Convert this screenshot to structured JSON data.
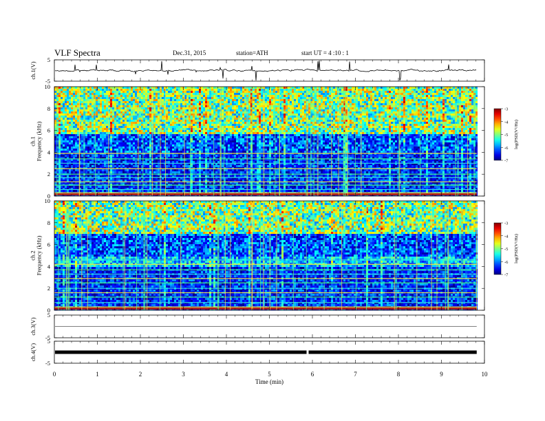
{
  "header": {
    "title": "VLF  Spectra",
    "date": "Dec.31, 2015",
    "station": "station=ATH",
    "start": "start  UT  =   4  :10 : 1"
  },
  "chart_data": [
    {
      "type": "line",
      "name": "ch1-waveform",
      "ylabel": "ch.1(V)",
      "ylim": [
        -5,
        5
      ],
      "yticks": [
        "5",
        "-5"
      ],
      "xlim": [
        0,
        10
      ]
    },
    {
      "type": "heatmap",
      "name": "ch1-spectrogram",
      "ylabel_line1": "ch.1",
      "ylabel_line2": "Frequency  (kHz)",
      "ylim": [
        0,
        10
      ],
      "yticks": [
        "0",
        "2",
        "4",
        "6",
        "8",
        "10"
      ],
      "xlim": [
        0,
        10
      ],
      "colorbar": {
        "label": "log(PSD(V²/Hz)",
        "range": [
          -7,
          -3
        ],
        "ticks": [
          "-3",
          "-4",
          "-5",
          "-6",
          "-7"
        ]
      },
      "features": {
        "green_region_above_khz": 5.8,
        "dark_blue_below_khz": 5.8,
        "horizontal_lines_khz": [
          0.3,
          0.6,
          1.0,
          1.3,
          1.7,
          2.0,
          2.5,
          3.0,
          3.4,
          3.9
        ]
      }
    },
    {
      "type": "heatmap",
      "name": "ch2-spectrogram",
      "ylabel_line1": "ch.2",
      "ylabel_line2": "Frequency  (kHz)",
      "ylim": [
        0,
        10
      ],
      "yticks": [
        "0",
        "2",
        "4",
        "6",
        "8",
        "10"
      ],
      "xlim": [
        0,
        10
      ],
      "colorbar": {
        "label": "log(PSD(V²/Hz)",
        "range": [
          -7,
          -3
        ],
        "ticks": [
          "-3",
          "-4",
          "-5",
          "-6",
          "-7"
        ]
      },
      "features": {
        "green_region_above_khz": 7.0,
        "band_khz": [
          4.0,
          5.0
        ],
        "horizontal_lines_khz": [
          0.3,
          0.7,
          1.2,
          1.6,
          2.0,
          2.5,
          2.9,
          3.3,
          3.7,
          4.2,
          4.6
        ]
      }
    },
    {
      "type": "line",
      "name": "ch3-waveform",
      "ylabel": "ch.3(V)",
      "ylim": [
        -5,
        5
      ],
      "yticks": [
        "5",
        "-5"
      ],
      "xlim": [
        0,
        10
      ]
    },
    {
      "type": "line",
      "name": "ch4-waveform",
      "ylabel": "ch.4(V)",
      "ylim": [
        -5,
        5
      ],
      "yticks": [
        "5",
        "-5"
      ],
      "xlim": [
        0,
        10
      ],
      "gaps_min": [
        5.88
      ]
    }
  ],
  "xaxis": {
    "label": "Time  (min)",
    "ticks": [
      "0",
      "1",
      "2",
      "3",
      "4",
      "5",
      "6",
      "7",
      "8",
      "9",
      "10"
    ],
    "range": [
      0,
      10
    ],
    "data_end_min": 9.82
  }
}
